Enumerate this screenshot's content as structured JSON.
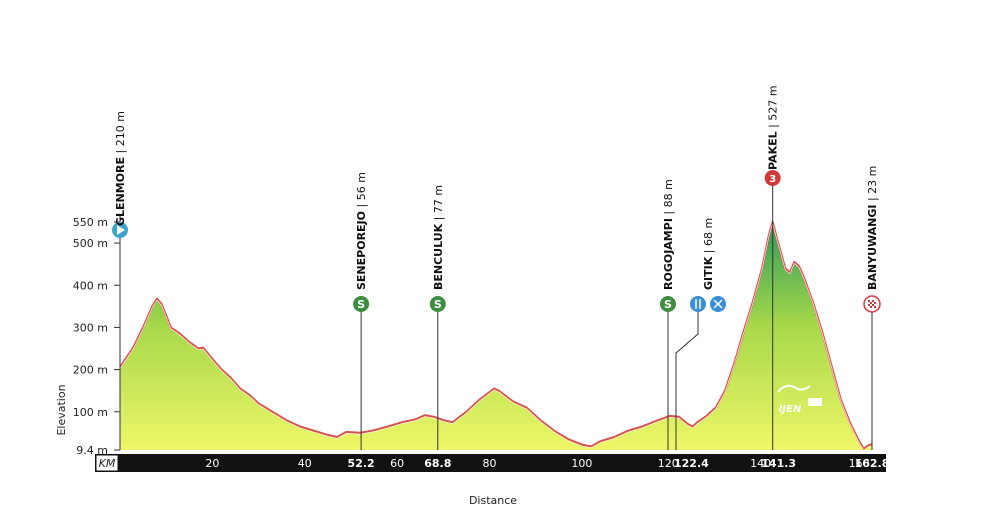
{
  "chart_data": {
    "type": "area",
    "title": "",
    "xlabel": "Distance",
    "ylabel": "Elevation",
    "xlim": [
      0,
      162.8
    ],
    "ylim": [
      9.4,
      550
    ],
    "y_ticks": [
      {
        "label": "9.4 m",
        "value": 9.4
      },
      {
        "label": "100 m",
        "value": 100
      },
      {
        "label": "200 m",
        "value": 200
      },
      {
        "label": "300 m",
        "value": 300
      },
      {
        "label": "400 m",
        "value": 400
      },
      {
        "label": "500 m",
        "value": 500
      },
      {
        "label": "550 m",
        "value": 550
      }
    ],
    "km_unit_label": "KM",
    "x_ticks": [
      {
        "label": "20",
        "value": 20,
        "bold": false
      },
      {
        "label": "40",
        "value": 40,
        "bold": false
      },
      {
        "label": "52.2",
        "value": 52.2,
        "bold": true
      },
      {
        "label": "60",
        "value": 60,
        "bold": false
      },
      {
        "label": "68.8",
        "value": 68.8,
        "bold": true
      },
      {
        "label": "80",
        "value": 80,
        "bold": false
      },
      {
        "label": "100",
        "value": 100,
        "bold": false
      },
      {
        "label": "120",
        "value": 120,
        "bold": false
      },
      {
        "label": "122.4",
        "value": 122.4,
        "bold": true
      },
      {
        "label": "140",
        "value": 140,
        "bold": false
      },
      {
        "label": "141.3",
        "value": 141.3,
        "bold": true
      },
      {
        "label": "160",
        "value": 160,
        "bold": false
      },
      {
        "label": "162.8",
        "value": 162.8,
        "bold": true
      }
    ],
    "profile": [
      [
        0,
        205
      ],
      [
        3,
        255
      ],
      [
        5,
        300
      ],
      [
        7,
        350
      ],
      [
        8,
        368
      ],
      [
        9,
        355
      ],
      [
        11,
        300
      ],
      [
        13,
        285
      ],
      [
        15,
        265
      ],
      [
        17,
        250
      ],
      [
        18,
        252
      ],
      [
        20,
        225
      ],
      [
        22,
        200
      ],
      [
        24,
        180
      ],
      [
        26,
        155
      ],
      [
        28,
        140
      ],
      [
        30,
        120
      ],
      [
        33,
        100
      ],
      [
        36,
        80
      ],
      [
        39,
        65
      ],
      [
        42,
        55
      ],
      [
        45,
        45
      ],
      [
        47,
        40
      ],
      [
        49,
        52
      ],
      [
        52,
        50
      ],
      [
        55,
        56
      ],
      [
        58,
        65
      ],
      [
        61,
        75
      ],
      [
        64,
        82
      ],
      [
        66,
        92
      ],
      [
        68,
        88
      ],
      [
        70,
        80
      ],
      [
        72,
        75
      ],
      [
        75,
        100
      ],
      [
        78,
        130
      ],
      [
        81,
        155
      ],
      [
        82,
        150
      ],
      [
        85,
        125
      ],
      [
        88,
        110
      ],
      [
        91,
        80
      ],
      [
        94,
        55
      ],
      [
        97,
        35
      ],
      [
        100,
        22
      ],
      [
        102,
        18
      ],
      [
        104,
        30
      ],
      [
        107,
        40
      ],
      [
        110,
        55
      ],
      [
        113,
        65
      ],
      [
        116,
        78
      ],
      [
        119,
        90
      ],
      [
        121,
        88
      ],
      [
        123,
        70
      ],
      [
        124,
        65
      ],
      [
        125,
        75
      ],
      [
        127,
        90
      ],
      [
        129,
        110
      ],
      [
        131,
        150
      ],
      [
        133,
        215
      ],
      [
        135,
        290
      ],
      [
        137,
        360
      ],
      [
        139,
        440
      ],
      [
        140.5,
        520
      ],
      [
        141.3,
        550
      ],
      [
        142,
        520
      ],
      [
        144,
        440
      ],
      [
        145,
        430
      ],
      [
        146,
        455
      ],
      [
        147,
        445
      ],
      [
        148,
        420
      ],
      [
        150,
        360
      ],
      [
        152,
        290
      ],
      [
        154,
        210
      ],
      [
        156,
        130
      ],
      [
        158,
        75
      ],
      [
        160,
        30
      ],
      [
        161,
        12
      ],
      [
        162,
        20
      ],
      [
        162.8,
        23
      ]
    ],
    "locations": [
      {
        "name": "GLENMORE",
        "elev_label": "210 m",
        "km": 0,
        "icon": "start-icon"
      },
      {
        "name": "SENEPOREJO",
        "elev_label": "56 m",
        "km": 52.2,
        "icon": "sprint-icon"
      },
      {
        "name": "BENCULUK",
        "elev_label": "77 m",
        "km": 68.8,
        "icon": "sprint-icon"
      },
      {
        "name": "ROGOJAMPI",
        "elev_label": "88 m",
        "km": 122.4,
        "icon": "sprint-icon"
      },
      {
        "name": "GITIK",
        "elev_label": "68 m",
        "km": 124,
        "icon": "feed-zone-icon"
      },
      {
        "name": "PAKEL",
        "elev_label": "527 m",
        "km": 141.3,
        "icon": "kom-cat3-icon"
      },
      {
        "name": "BANYUWANGI",
        "elev_label": "23 m",
        "km": 162.8,
        "icon": "finish-flag-icon"
      }
    ],
    "markers": {
      "sprint_letter": "S",
      "kom_category": "3",
      "logo_text": "IJEN"
    },
    "colors": {
      "fill_top": "#2e9a5c",
      "fill_mid": "#a6d84a",
      "fill_bottom": "#eef768",
      "outline": "#d9534f",
      "km_bar": "#111111",
      "start": "#3aa3c9",
      "sprint": "#3e8e41",
      "feed": "#3a8fd6",
      "kom": "#d0383a"
    }
  }
}
